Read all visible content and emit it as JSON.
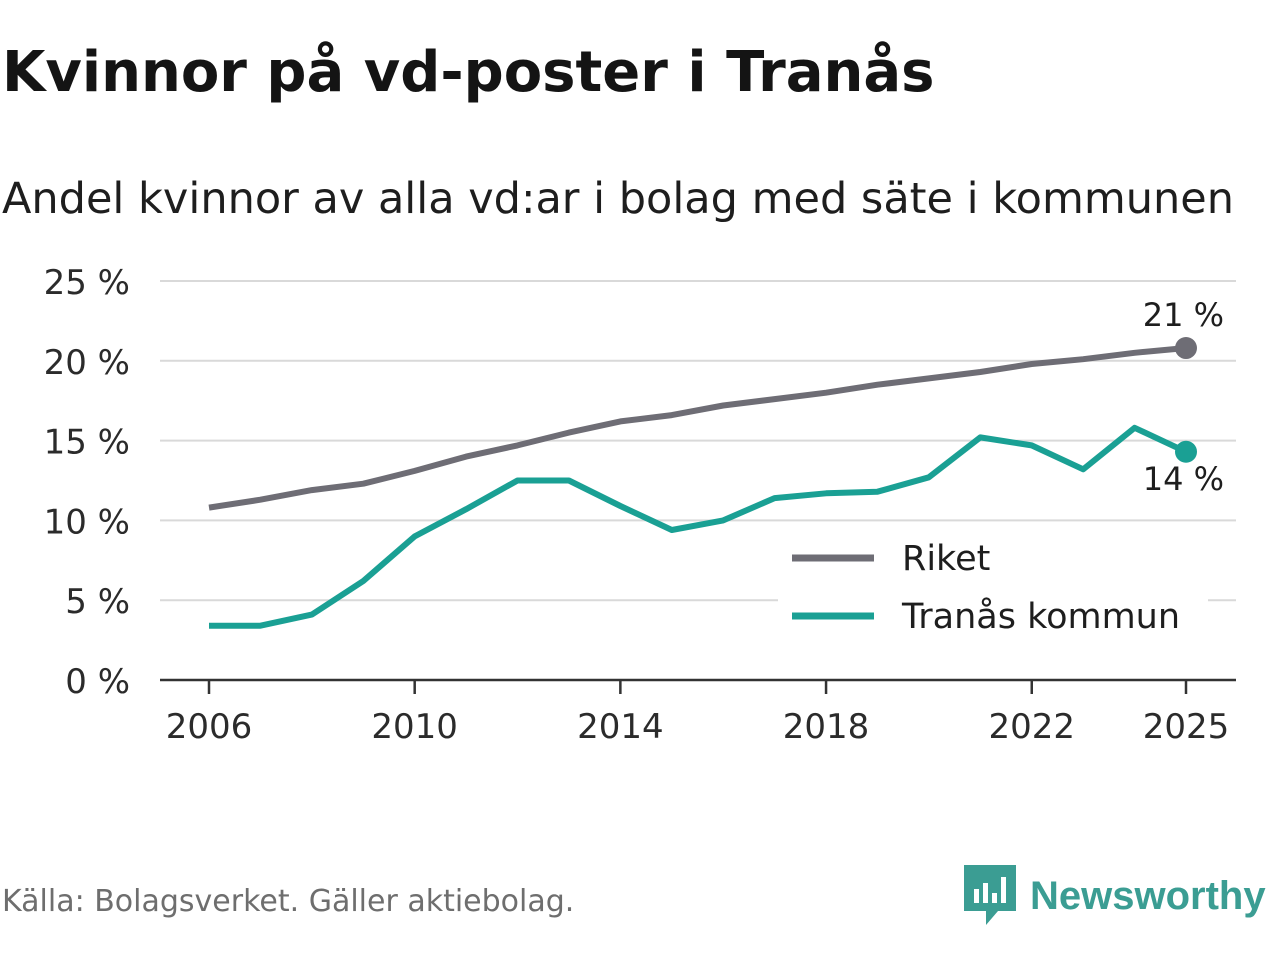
{
  "header": {
    "title": "Kvinnor på vd-poster i Tranås",
    "subtitle": "Andel kvinnor av alla vd:ar i bolag med säte i kommunen"
  },
  "footer": {
    "source": "Källa: Bolagsverket. Gäller aktiebolag.",
    "brand": "Newsworthy"
  },
  "chart_data": {
    "type": "line",
    "title": "Kvinnor på vd-poster i Tranås",
    "subtitle": "Andel kvinnor av alla vd:ar i bolag med säte i kommunen",
    "xlabel": "",
    "ylabel": "",
    "x": [
      2006,
      2007,
      2008,
      2009,
      2010,
      2011,
      2012,
      2013,
      2014,
      2015,
      2016,
      2017,
      2018,
      2019,
      2020,
      2021,
      2022,
      2023,
      2024,
      2025
    ],
    "x_ticks": [
      2006,
      2010,
      2014,
      2018,
      2022,
      2025
    ],
    "y_ticks": [
      0,
      5,
      10,
      15,
      20,
      25
    ],
    "y_tick_suffix": " %",
    "ylim": [
      0,
      25
    ],
    "grid": true,
    "legend_position": "bottom-right",
    "series": [
      {
        "name": "Riket",
        "color": "#6e6d75",
        "values": [
          10.8,
          11.3,
          11.9,
          12.3,
          13.1,
          14.0,
          14.7,
          15.5,
          16.2,
          16.6,
          17.2,
          17.6,
          18.0,
          18.5,
          18.9,
          19.3,
          19.8,
          20.1,
          20.5,
          20.8
        ],
        "end_label": "21 %"
      },
      {
        "name": "Tranås kommun",
        "color": "#1aa094",
        "values": [
          3.4,
          3.4,
          4.1,
          6.2,
          9.0,
          10.7,
          12.5,
          12.5,
          10.9,
          9.4,
          10.0,
          11.4,
          11.7,
          11.8,
          12.7,
          15.2,
          14.7,
          13.2,
          15.8,
          14.3
        ],
        "end_label": "14 %"
      }
    ]
  }
}
